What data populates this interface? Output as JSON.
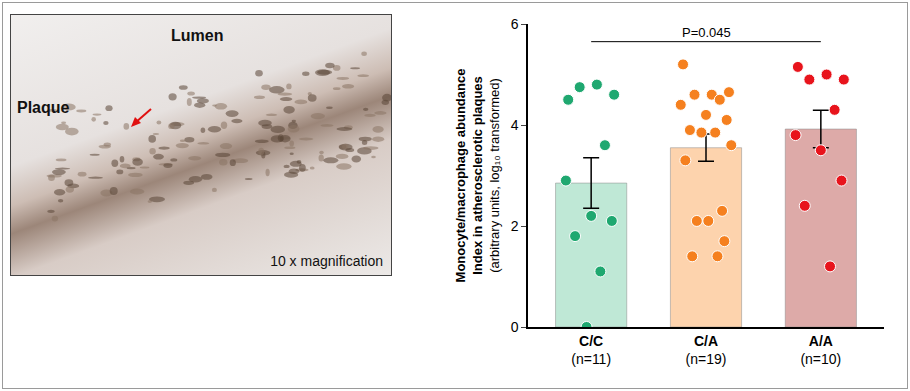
{
  "micrograph": {
    "lumen": "Lumen",
    "plaque": "Plaque",
    "magnification": "10 x magnification"
  },
  "chart_data": {
    "type": "bar",
    "ylabel": [
      "Monocyte/macrophage abundance",
      "Index in atherosclerotic plaques",
      "(arbitrary units, log₁₀ transformed)"
    ],
    "categories": [
      "C/C",
      "C/A",
      "A/A"
    ],
    "sample_sizes": [
      "(n=11)",
      "(n=19)",
      "(n=10)"
    ],
    "values": [
      2.85,
      3.55,
      3.92
    ],
    "errors": [
      0.5,
      0.27,
      0.37
    ],
    "colors": [
      "#bfe8d6",
      "#fdd3ad",
      "#ddaaa8"
    ],
    "point_colors": [
      "#1fa870",
      "#f5801f",
      "#e8141c"
    ],
    "points": [
      [
        4.5,
        4.8,
        4.6,
        4.75,
        3.6,
        2.9,
        2.2,
        2.1,
        1.8,
        1.1,
        0.0
      ],
      [
        5.2,
        4.6,
        4.65,
        4.6,
        4.5,
        4.4,
        4.2,
        4.1,
        3.9,
        3.85,
        3.85,
        3.6,
        3.3,
        2.3,
        2.1,
        2.1,
        1.7,
        1.4,
        1.4
      ],
      [
        5.15,
        5.0,
        4.9,
        4.9,
        4.3,
        3.8,
        3.5,
        2.9,
        2.4,
        1.2
      ]
    ],
    "ylim": [
      0,
      6
    ],
    "yticks": [
      0,
      2,
      4,
      6
    ],
    "grid": false,
    "annotation": {
      "text": "P=0.045",
      "from": "C/C",
      "to": "A/A",
      "y": 5.65
    }
  }
}
